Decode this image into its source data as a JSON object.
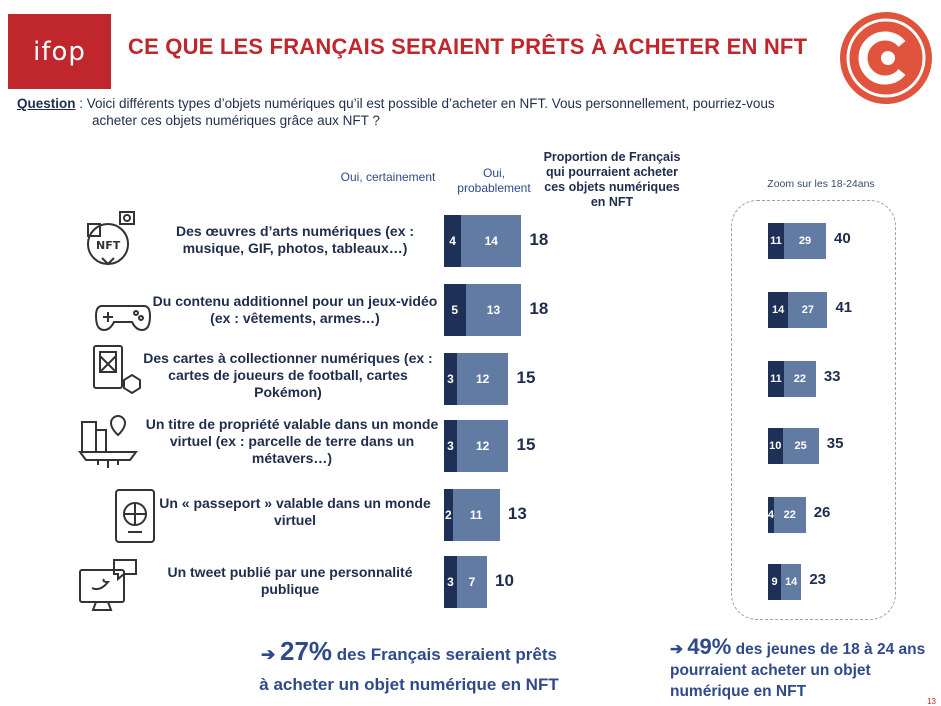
{
  "header": {
    "logo_text": "ifop",
    "title": "CE QUE LES FRANÇAIS SERAIENT PRÊTS À ACHETER EN NFT"
  },
  "question": {
    "label": "Question",
    "line1": " : Voici différents types d’objets numériques qu’il est possible d’acheter en NFT. Vous personnellement, pourriez-vous",
    "line2": "acheter ces objets numériques grâce aux NFT ?"
  },
  "columns": {
    "certain": "Oui, certainement",
    "probable": "Oui, probablement",
    "proportion": "Proportion de Français qui pourraient acheter ces objets numériques en NFT",
    "zoom": "Zoom sur les 18-24ans"
  },
  "colors": {
    "certain": "#1f3057",
    "probable": "#627ba3",
    "title": "#c0272d"
  },
  "chart_data": [
    {
      "type": "bar",
      "orientation": "horizontal",
      "stacked": true,
      "categories": [
        "Des œuvres d’arts numériques (ex : musique, GIF, photos, tableaux…)",
        "Du contenu additionnel pour un jeux-vidéo (ex : vêtements, armes…)",
        "Des cartes à collectionner numériques (ex : cartes de joueurs de football, cartes Pokémon)",
        "Un titre de propriété valable dans un monde virtuel (ex : parcelle de terre dans un métavers…)",
        "Un « passeport » valable dans un monde virtuel",
        "Un tweet publié par une personnalité publique"
      ],
      "series": [
        {
          "name": "Oui, certainement",
          "values": [
            4,
            5,
            3,
            3,
            2,
            3
          ]
        },
        {
          "name": "Oui, probablement",
          "values": [
            14,
            13,
            12,
            12,
            11,
            7
          ]
        }
      ],
      "totals": [
        18,
        18,
        15,
        15,
        13,
        10
      ]
    },
    {
      "type": "bar",
      "orientation": "horizontal",
      "stacked": true,
      "title": "Zoom sur les 18-24ans",
      "series": [
        {
          "name": "Oui, certainement",
          "values": [
            11,
            14,
            11,
            10,
            4,
            9
          ]
        },
        {
          "name": "Oui, probablement",
          "values": [
            29,
            27,
            22,
            25,
            22,
            14
          ]
        }
      ],
      "totals": [
        40,
        41,
        33,
        35,
        26,
        23
      ]
    }
  ],
  "rows": [
    {
      "icon": "nft-art-icon",
      "label": "Des œuvres d’arts numériques (ex : musique, GIF, photos, tableaux…)"
    },
    {
      "icon": "gamepad-icon",
      "label": "Du contenu additionnel pour un jeux-vidéo (ex : vêtements, armes…)"
    },
    {
      "icon": "trading-card-icon",
      "label": "Des cartes à collectionner numériques (ex : cartes de joueurs de football, cartes Pokémon)"
    },
    {
      "icon": "virtual-land-icon",
      "label": "Un titre de propriété valable dans un monde virtuel (ex : parcelle de terre dans un métavers…)"
    },
    {
      "icon": "passport-icon",
      "label": "Un « passeport » valable dans un monde virtuel"
    },
    {
      "icon": "tweet-icon",
      "label": "Un tweet publié par une personnalité publique"
    }
  ],
  "footer": {
    "left_big": "27%",
    "left_text1": " des Français seraient prêts",
    "left_text2": "à acheter un objet numérique en NFT",
    "right_big": "49%",
    "right_text": " des jeunes de 18 à 24 ans pourraient acheter un objet numérique en NFT",
    "page_number": "13"
  }
}
